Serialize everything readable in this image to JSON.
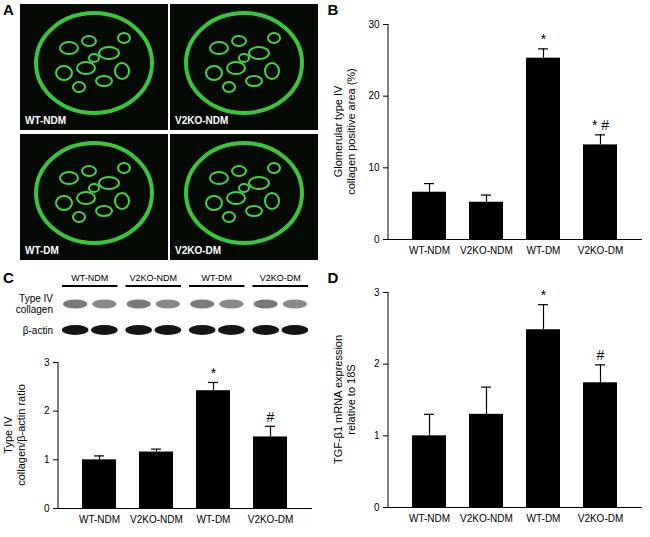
{
  "image_panel": {
    "letter": "A",
    "labels": [
      "WT-NDM",
      "V2KO-NDM",
      "WT-DM",
      "V2KO-DM"
    ]
  },
  "chart_data": [
    {
      "letter": "B",
      "type": "bar",
      "y_label": "Glomerular type IV collagen positive area (%)",
      "categories": [
        "WT-NDM",
        "V2KO-NDM",
        "WT-DM",
        "V2KO-DM"
      ],
      "values": [
        6.6,
        5.2,
        25.3,
        13.2
      ],
      "errors": [
        1.2,
        1.0,
        1.3,
        1.4
      ],
      "annotations": [
        null,
        null,
        "*",
        "* #"
      ],
      "color": "#000000",
      "ylim": [
        0,
        30
      ],
      "yticks": [
        0,
        10,
        20,
        30
      ]
    },
    {
      "letter": "C",
      "type": "bar",
      "y_label": "Type IV collagen/β-actin ratio",
      "blot": {
        "group_labels": [
          "WT-NDM",
          "V2KO-NDM",
          "WT-DM",
          "V2KO-DM"
        ],
        "rows": [
          "Type IV collagen",
          "β-actin"
        ]
      },
      "categories": [
        "WT-NDM",
        "V2KO-NDM",
        "WT-DM",
        "V2KO-DM"
      ],
      "values": [
        1.0,
        1.16,
        2.42,
        1.47
      ],
      "errors": [
        0.08,
        0.06,
        0.17,
        0.22
      ],
      "annotations": [
        null,
        null,
        "*",
        "#"
      ],
      "color": "#000000",
      "ylim": [
        0,
        3
      ],
      "yticks": [
        0,
        1,
        2,
        3
      ]
    },
    {
      "letter": "D",
      "type": "bar",
      "y_label": "TGF-β1 mRNA expression relative to 18S",
      "categories": [
        "WT-NDM",
        "V2KO-NDM",
        "WT-DM",
        "V2KO-DM"
      ],
      "values": [
        1.0,
        1.3,
        2.48,
        1.74
      ],
      "errors": [
        0.3,
        0.38,
        0.35,
        0.25
      ],
      "annotations": [
        null,
        null,
        "*",
        "#"
      ],
      "color": "#000000",
      "ylim": [
        0,
        3
      ],
      "yticks": [
        0,
        1,
        2,
        3
      ]
    }
  ]
}
